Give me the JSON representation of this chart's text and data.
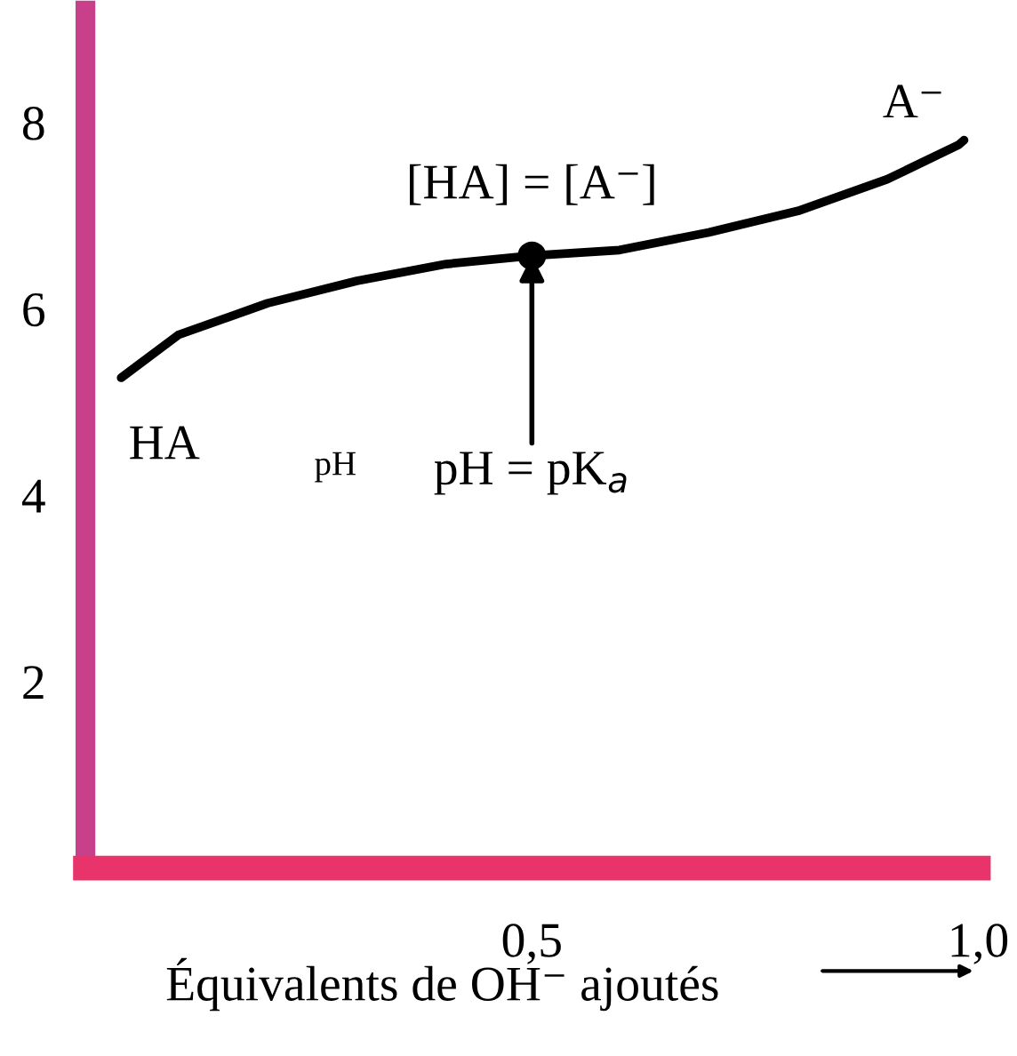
{
  "chart_data": {
    "type": "line",
    "xlabel": "Équivalents de OH⁻ ajoutés",
    "ylabel": "pH",
    "xlim": [
      0,
      1.0
    ],
    "ylim": [
      0,
      9.2
    ],
    "xticks": [
      {
        "value": 0.5,
        "label": "0,5"
      },
      {
        "value": 1.0,
        "label": "1,0"
      }
    ],
    "yticks": [
      2,
      4,
      6,
      8
    ],
    "series": [
      {
        "color": "#000000",
        "x": [
          0.04,
          0.104,
          0.204,
          0.304,
          0.404,
          0.5,
          0.598,
          0.698,
          0.798,
          0.898,
          0.978,
          0.984
        ],
        "values": [
          5.26,
          5.72,
          6.06,
          6.3,
          6.48,
          6.57,
          6.63,
          6.82,
          7.05,
          7.39,
          7.76,
          7.81
        ]
      },
      {
        "type": "scatter",
        "color": "#000000",
        "x": [
          0.5
        ],
        "values": [
          6.57
        ]
      }
    ],
    "annotations": [
      {
        "text": "HA",
        "x": 0.04,
        "y": 5.26
      },
      {
        "text": "A⁻",
        "x": 0.984,
        "y": 7.81
      },
      {
        "text": "[HA] = [A⁻]",
        "x": 0.5,
        "y": 6.57
      },
      {
        "text": "pH = pK$_{a}$",
        "x": 0.5,
        "y": 6.57
      }
    ],
    "grid": false,
    "legend": false
  }
}
